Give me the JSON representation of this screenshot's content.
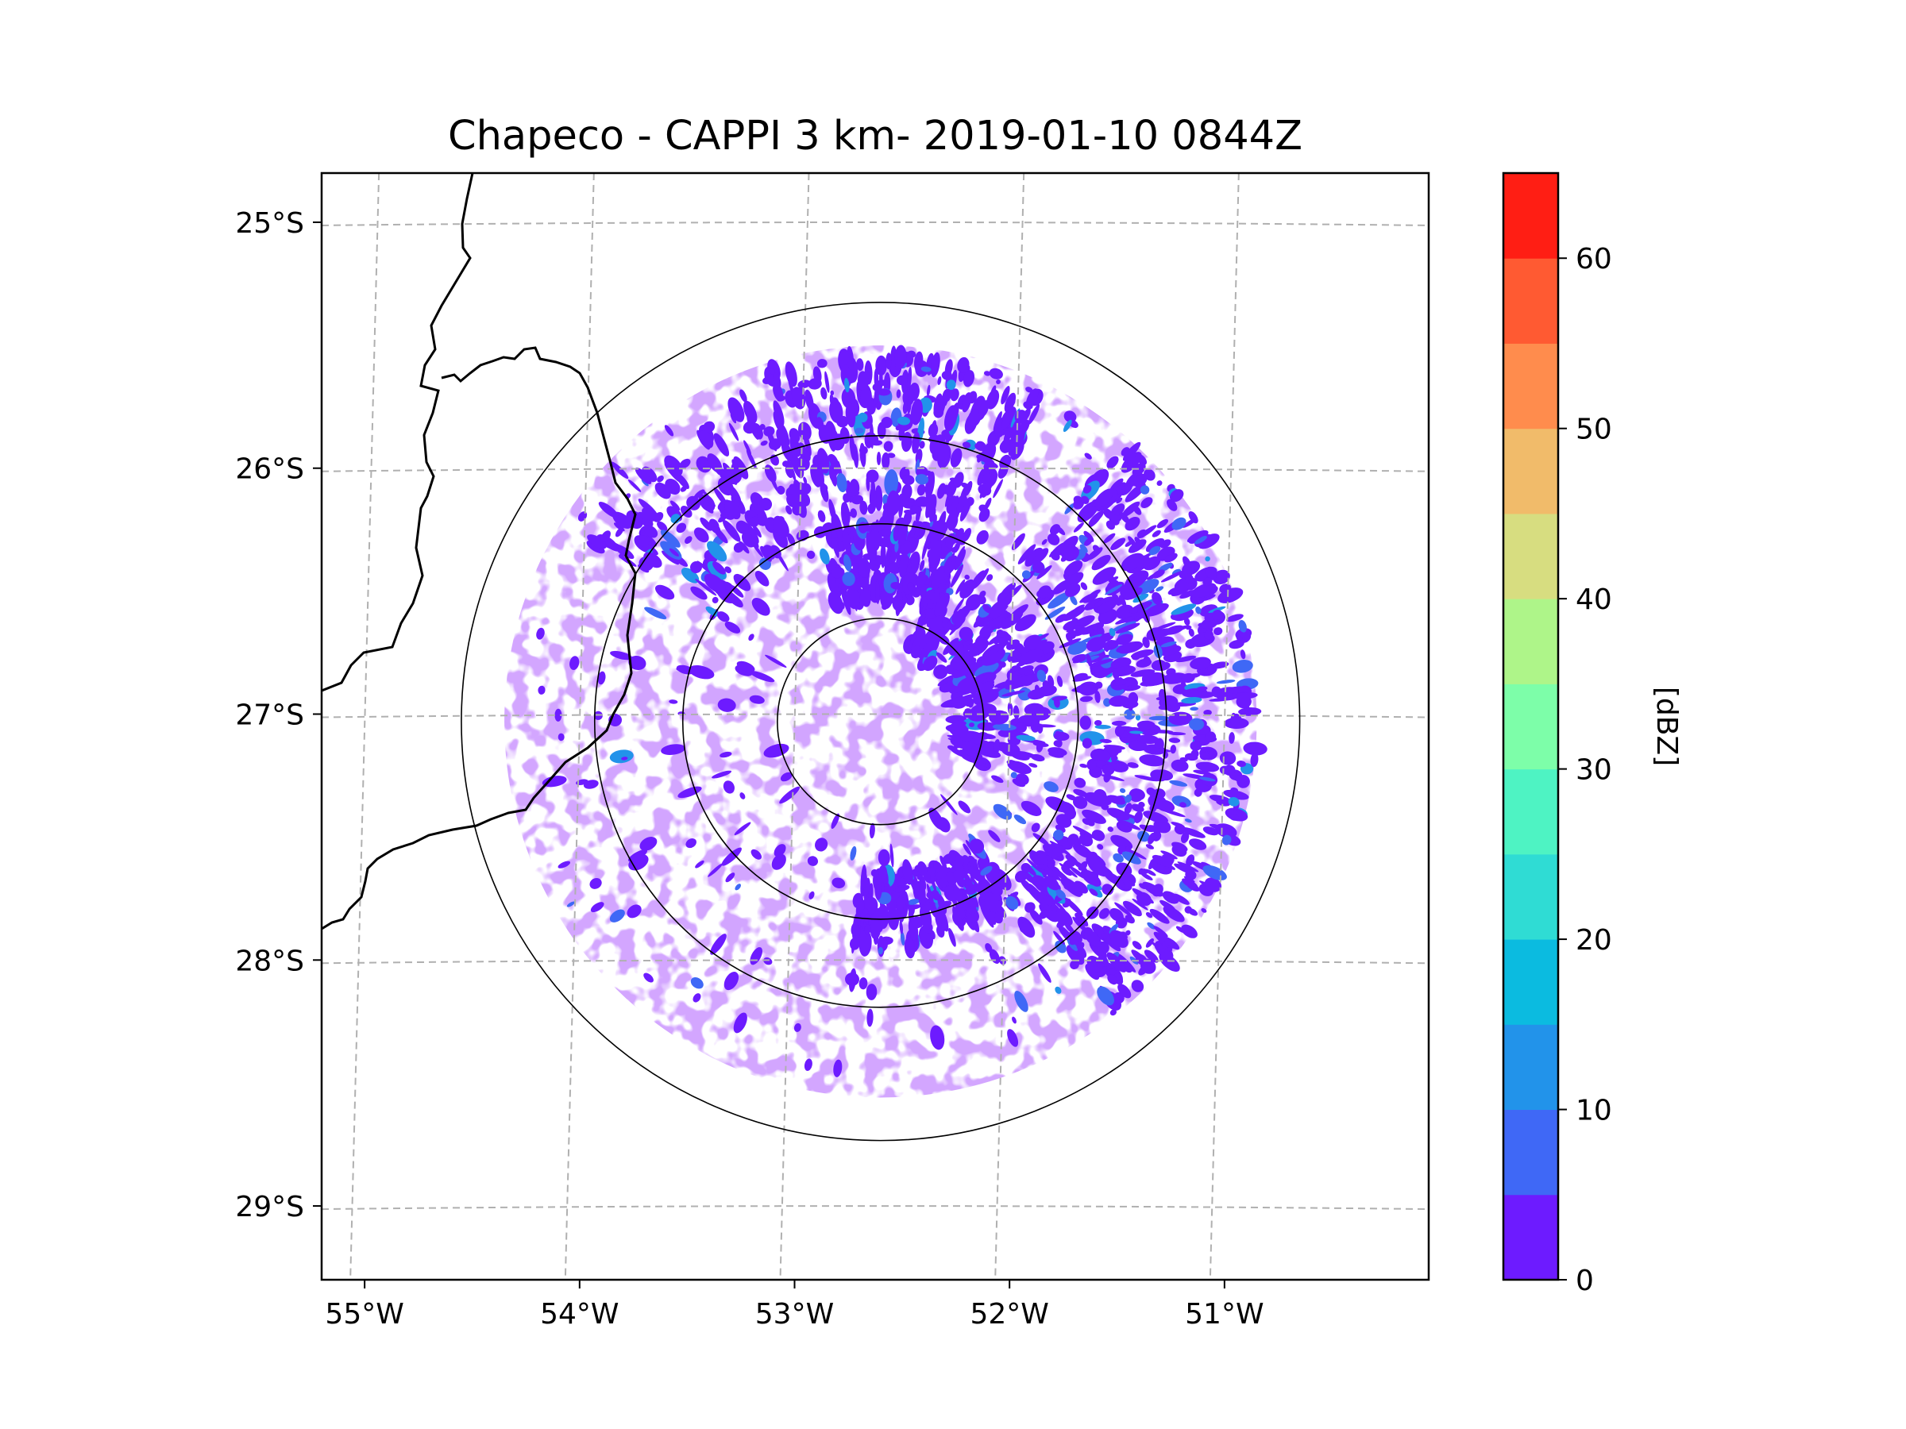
{
  "chart_data": {
    "type": "heatmap",
    "title": "Chapeco - CAPPI 3 km- 2019-01-10 0844Z",
    "x_axis": {
      "label": "",
      "range": [
        -55.2,
        -50.05
      ],
      "ticks": [
        {
          "value": -55,
          "label": "55°W"
        },
        {
          "value": -54,
          "label": "54°W"
        },
        {
          "value": -53,
          "label": "53°W"
        },
        {
          "value": -52,
          "label": "52°W"
        },
        {
          "value": -51,
          "label": "51°W"
        }
      ]
    },
    "y_axis": {
      "label": "",
      "range": [
        -29.3,
        -24.8
      ],
      "ticks": [
        {
          "value": -25,
          "label": "25°S"
        },
        {
          "value": -26,
          "label": "26°S"
        },
        {
          "value": -27,
          "label": "27°S"
        },
        {
          "value": -28,
          "label": "28°S"
        },
        {
          "value": -29,
          "label": "29°S"
        }
      ]
    },
    "grid": true,
    "radar_center": {
      "lon": -52.6,
      "lat": -27.03
    },
    "range_rings_deg": [
      0.48,
      0.92,
      1.33,
      1.95
    ],
    "echo_max_radius_deg": 1.75,
    "colorbar": {
      "label": "[dBZ]",
      "min": 0,
      "max": 65,
      "step": 5,
      "ticks": [
        0,
        10,
        20,
        30,
        40,
        50,
        60
      ],
      "colors": [
        "#6d1bff",
        "#3f68f6",
        "#2293ea",
        "#0bbbe0",
        "#2fdcd4",
        "#4ef3c3",
        "#7dfea9",
        "#aef589",
        "#d7dd80",
        "#f1bb6a",
        "#ff8c4d",
        "#ff5a32",
        "#ff1e14"
      ]
    }
  }
}
